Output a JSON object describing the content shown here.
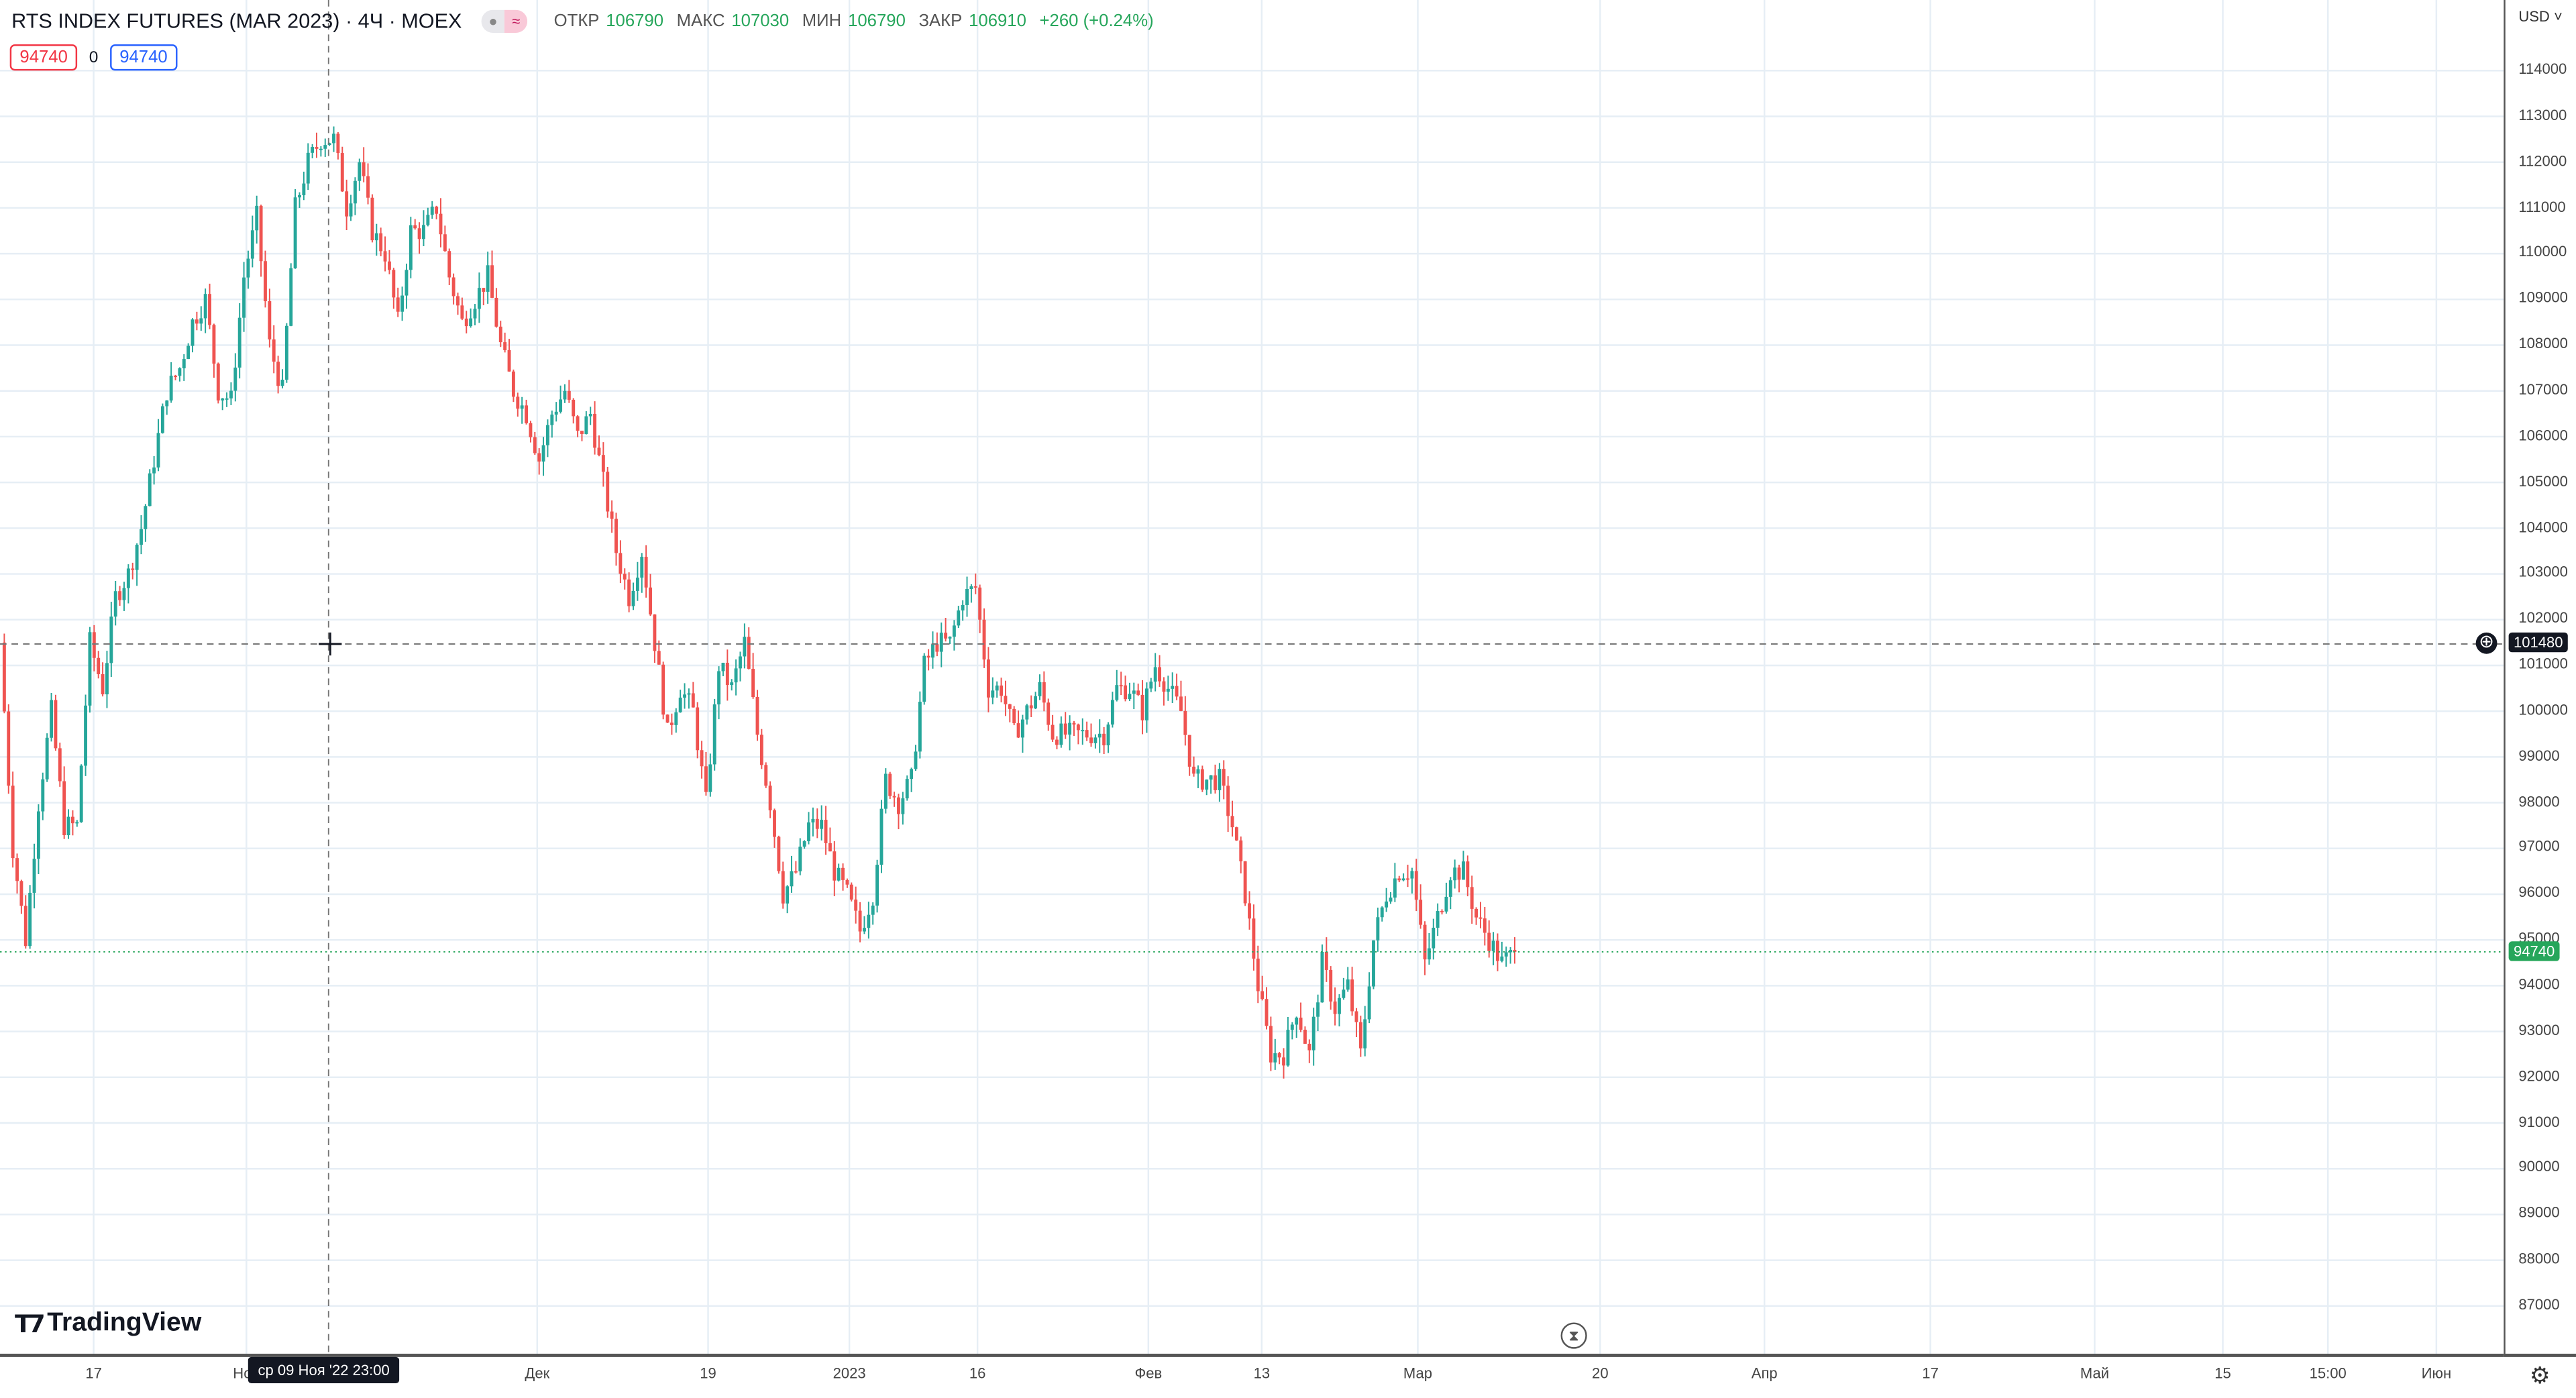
{
  "header": {
    "title": "RTS INDEX FUTURES (MAR 2023) · 4Ч · MOEX",
    "open_label": "ОТКР",
    "open": "106790",
    "high_label": "МАКС",
    "high": "107030",
    "low_label": "МИН",
    "low": "106790",
    "close_label": "ЗАКР",
    "close": "106910",
    "change": "+260 (+0.24%)"
  },
  "order": {
    "sell": "94740",
    "spread": "0",
    "buy": "94740"
  },
  "currency": "USD",
  "crosshair": {
    "price": "101480",
    "time": "ср 09 Ноя '22   23:00"
  },
  "last_price": "94740",
  "logo": "TradingView",
  "colors": {
    "up": "#26a69a",
    "down": "#ef5350",
    "grid": "#e6eef5"
  },
  "chart_data": {
    "type": "candlestick",
    "title": "RTS INDEX FUTURES (MAR 2023), 4H, MOEX",
    "ylim": [
      86500,
      114600
    ],
    "y_ticks": [
      "114000",
      "113000",
      "112000",
      "111000",
      "110000",
      "109000",
      "108000",
      "107000",
      "106000",
      "105000",
      "104000",
      "103000",
      "102000",
      "101000",
      "100000",
      "99000",
      "98000",
      "97000",
      "96000",
      "95000",
      "94000",
      "93000",
      "92000",
      "91000",
      "90000",
      "89000",
      "88000",
      "87000"
    ],
    "x_ticks": [
      "17",
      "Ноя",
      "Дек",
      "19",
      "2023",
      "16",
      "Фев",
      "13",
      "Мар",
      "20",
      "Апр",
      "17",
      "Май",
      "15",
      "15:00",
      "Июн"
    ],
    "approx_close_path": [
      101500,
      97000,
      95000,
      98000,
      100000,
      97500,
      97500,
      101500,
      100500,
      102500,
      103000,
      104000,
      105500,
      107000,
      107500,
      108500,
      109000,
      107000,
      106800,
      109500,
      110800,
      108000,
      107000,
      111000,
      112000,
      112500,
      112500,
      111000,
      112000,
      110500,
      110000,
      108500,
      110500,
      110500,
      111000,
      109500,
      108500,
      109000,
      109500,
      108000,
      107000,
      106500,
      105500,
      106500,
      107000,
      106000,
      106500,
      105000,
      103500,
      102500,
      103500,
      101500,
      99500,
      100500,
      100000,
      98000,
      101000,
      100500,
      101500,
      99500,
      98000,
      96000,
      96500,
      97500,
      97500,
      96500,
      96000,
      95200,
      96000,
      98500,
      98000,
      98500,
      101000,
      101500,
      101500,
      102500,
      102700,
      100500,
      100500,
      99500,
      100000,
      100500,
      99500,
      99500,
      99500,
      99500,
      99500,
      100500,
      100500,
      100000,
      101000,
      100500,
      100000,
      98500,
      98500,
      98500,
      97500,
      96000,
      94000,
      92500,
      92500,
      93500,
      92500,
      94500,
      93500,
      94000,
      92500,
      95000,
      96000,
      96500,
      96500,
      94500,
      95500,
      96500,
      96500,
      95500,
      95000,
      94500,
      94740
    ]
  }
}
